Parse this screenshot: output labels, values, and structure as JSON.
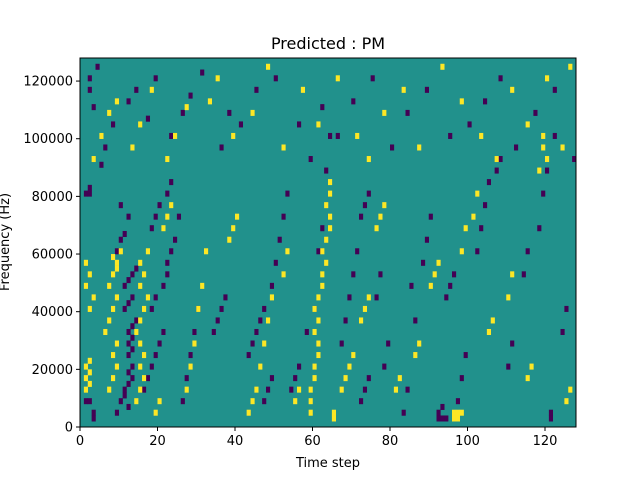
{
  "chart_data": {
    "type": "heatmap",
    "title": "Predicted : PM",
    "xlabel": "Time step",
    "ylabel": "Frequency (Hz)",
    "xlim": [
      0,
      128
    ],
    "ylim": [
      0,
      128000
    ],
    "x_ticks": [
      0,
      20,
      40,
      60,
      80,
      100,
      120
    ],
    "y_ticks": [
      0,
      20000,
      40000,
      60000,
      80000,
      100000,
      120000
    ],
    "x_tick_labels": [
      "0",
      "20",
      "40",
      "60",
      "80",
      "100",
      "120"
    ],
    "y_tick_labels": [
      "0",
      "20000",
      "40000",
      "60000",
      "80000",
      "100000",
      "120000"
    ],
    "n_time_steps": 128,
    "n_freq_bins": 64,
    "grid": false,
    "colormap": "viridis",
    "values_legend": {
      "0": "background",
      "1": "low (dark purple)",
      "2": "high (yellow)"
    },
    "colors": {
      "background": "#21918c",
      "low": "#440154",
      "high": "#fde725"
    },
    "low_cells": [
      [
        1,
        4
      ],
      [
        2,
        4
      ],
      [
        3,
        2
      ],
      [
        3,
        1
      ],
      [
        1,
        40
      ],
      [
        2,
        40
      ],
      [
        2,
        41
      ],
      [
        5,
        45
      ],
      [
        3,
        55
      ],
      [
        9,
        30
      ],
      [
        10,
        32
      ],
      [
        11,
        33
      ],
      [
        10,
        38
      ],
      [
        12,
        36
      ],
      [
        11,
        20
      ],
      [
        12,
        21
      ],
      [
        13,
        22
      ],
      [
        11,
        24
      ],
      [
        12,
        25
      ],
      [
        13,
        26
      ],
      [
        14,
        27
      ],
      [
        12,
        12
      ],
      [
        13,
        13
      ],
      [
        12,
        14
      ],
      [
        13,
        15
      ],
      [
        12,
        16
      ],
      [
        13,
        17
      ],
      [
        14,
        18
      ],
      [
        11,
        6
      ],
      [
        12,
        7
      ],
      [
        13,
        8
      ],
      [
        12,
        9
      ],
      [
        13,
        10
      ],
      [
        9,
        2
      ],
      [
        10,
        4
      ],
      [
        11,
        5
      ],
      [
        12,
        3
      ],
      [
        16,
        6
      ],
      [
        17,
        8
      ],
      [
        18,
        10
      ],
      [
        19,
        12
      ],
      [
        20,
        14
      ],
      [
        21,
        16
      ],
      [
        18,
        20
      ],
      [
        19,
        22
      ],
      [
        21,
        24
      ],
      [
        22,
        26
      ],
      [
        22,
        28
      ],
      [
        23,
        30
      ],
      [
        24,
        32
      ],
      [
        18,
        34
      ],
      [
        19,
        36
      ],
      [
        20,
        38
      ],
      [
        22,
        40
      ],
      [
        23,
        42
      ],
      [
        25,
        36
      ],
      [
        26,
        4
      ],
      [
        27,
        8
      ],
      [
        28,
        12
      ],
      [
        29,
        16
      ],
      [
        30,
        20
      ],
      [
        34,
        16
      ],
      [
        35,
        18
      ],
      [
        36,
        20
      ],
      [
        37,
        22
      ],
      [
        43,
        12
      ],
      [
        44,
        14
      ],
      [
        45,
        16
      ],
      [
        46,
        18
      ],
      [
        47,
        20
      ],
      [
        47,
        4
      ],
      [
        48,
        6
      ],
      [
        49,
        8
      ],
      [
        49,
        24
      ],
      [
        50,
        28
      ],
      [
        51,
        32
      ],
      [
        52,
        36
      ],
      [
        53,
        40
      ],
      [
        54,
        6
      ],
      [
        55,
        8
      ],
      [
        56,
        10
      ],
      [
        58,
        16
      ],
      [
        60,
        20
      ],
      [
        59,
        46
      ],
      [
        61,
        30
      ],
      [
        62,
        34
      ],
      [
        63,
        44
      ],
      [
        64,
        50
      ],
      [
        67,
        14
      ],
      [
        68,
        18
      ],
      [
        69,
        22
      ],
      [
        70,
        26
      ],
      [
        71,
        30
      ],
      [
        72,
        4
      ],
      [
        73,
        6
      ],
      [
        74,
        8
      ],
      [
        72,
        36
      ],
      [
        73,
        38
      ],
      [
        74,
        40
      ],
      [
        76,
        22
      ],
      [
        77,
        26
      ],
      [
        78,
        10
      ],
      [
        79,
        14
      ],
      [
        83,
        2
      ],
      [
        84,
        6
      ],
      [
        85,
        24
      ],
      [
        86,
        18
      ],
      [
        88,
        28
      ],
      [
        89,
        32
      ],
      [
        90,
        36
      ],
      [
        92,
        1
      ],
      [
        92,
        2
      ],
      [
        93,
        1
      ],
      [
        94,
        1
      ],
      [
        93,
        3
      ],
      [
        94,
        22
      ],
      [
        95,
        24
      ],
      [
        96,
        26
      ],
      [
        97,
        4
      ],
      [
        98,
        8
      ],
      [
        99,
        12
      ],
      [
        102,
        30
      ],
      [
        103,
        34
      ],
      [
        104,
        38
      ],
      [
        105,
        42
      ],
      [
        107,
        44
      ],
      [
        108,
        46
      ],
      [
        110,
        10
      ],
      [
        111,
        14
      ],
      [
        114,
        26
      ],
      [
        115,
        30
      ],
      [
        118,
        34
      ],
      [
        119,
        40
      ],
      [
        120,
        44
      ],
      [
        121,
        2
      ],
      [
        121,
        1
      ],
      [
        122,
        50
      ],
      [
        124,
        16
      ],
      [
        125,
        20
      ],
      [
        2,
        58
      ],
      [
        2,
        60
      ],
      [
        4,
        62
      ],
      [
        6,
        48
      ],
      [
        8,
        52
      ],
      [
        12,
        56
      ],
      [
        14,
        58
      ],
      [
        17,
        53
      ],
      [
        19,
        60
      ],
      [
        23,
        50
      ],
      [
        26,
        54
      ],
      [
        28,
        57
      ],
      [
        31,
        61
      ],
      [
        36,
        48
      ],
      [
        38,
        54
      ],
      [
        41,
        52
      ],
      [
        45,
        58
      ],
      [
        50,
        60
      ],
      [
        56,
        52
      ],
      [
        62,
        55
      ],
      [
        66,
        50
      ],
      [
        70,
        56
      ],
      [
        75,
        60
      ],
      [
        80,
        48
      ],
      [
        84,
        54
      ],
      [
        89,
        58
      ],
      [
        95,
        50
      ],
      [
        100,
        52
      ],
      [
        104,
        56
      ],
      [
        108,
        60
      ],
      [
        112,
        48
      ],
      [
        117,
        54
      ],
      [
        122,
        58
      ],
      [
        127,
        46
      ]
    ],
    "high_cells": [
      [
        1,
        6
      ],
      [
        2,
        7
      ],
      [
        1,
        8
      ],
      [
        2,
        9
      ],
      [
        1,
        10
      ],
      [
        2,
        11
      ],
      [
        1,
        24
      ],
      [
        2,
        26
      ],
      [
        1,
        28
      ],
      [
        2,
        20
      ],
      [
        3,
        22
      ],
      [
        6,
        16
      ],
      [
        7,
        18
      ],
      [
        8,
        20
      ],
      [
        9,
        22
      ],
      [
        7,
        24
      ],
      [
        8,
        26
      ],
      [
        9,
        28
      ],
      [
        10,
        30
      ],
      [
        8,
        29
      ],
      [
        9,
        27
      ],
      [
        7,
        6
      ],
      [
        8,
        8
      ],
      [
        9,
        10
      ],
      [
        8,
        12
      ],
      [
        9,
        14
      ],
      [
        14,
        4
      ],
      [
        15,
        6
      ],
      [
        16,
        8
      ],
      [
        15,
        10
      ],
      [
        16,
        12
      ],
      [
        15,
        14
      ],
      [
        14,
        16
      ],
      [
        15,
        18
      ],
      [
        16,
        20
      ],
      [
        17,
        22
      ],
      [
        15,
        24
      ],
      [
        16,
        26
      ],
      [
        15,
        28
      ],
      [
        17,
        30
      ],
      [
        19,
        2
      ],
      [
        20,
        4
      ],
      [
        21,
        34
      ],
      [
        22,
        36
      ],
      [
        23,
        38
      ],
      [
        27,
        6
      ],
      [
        28,
        10
      ],
      [
        29,
        14
      ],
      [
        30,
        20
      ],
      [
        31,
        24
      ],
      [
        32,
        30
      ],
      [
        38,
        32
      ],
      [
        39,
        34
      ],
      [
        40,
        36
      ],
      [
        43,
        2
      ],
      [
        44,
        4
      ],
      [
        45,
        6
      ],
      [
        46,
        10
      ],
      [
        47,
        14
      ],
      [
        48,
        18
      ],
      [
        49,
        22
      ],
      [
        52,
        26
      ],
      [
        53,
        30
      ],
      [
        55,
        4
      ],
      [
        56,
        6
      ],
      [
        59,
        2
      ],
      [
        59,
        4
      ],
      [
        59,
        6
      ],
      [
        60,
        8
      ],
      [
        60,
        10
      ],
      [
        61,
        12
      ],
      [
        61,
        14
      ],
      [
        60,
        16
      ],
      [
        61,
        18
      ],
      [
        60,
        20
      ],
      [
        61,
        22
      ],
      [
        62,
        24
      ],
      [
        62,
        26
      ],
      [
        63,
        28
      ],
      [
        62,
        30
      ],
      [
        63,
        32
      ],
      [
        64,
        34
      ],
      [
        64,
        36
      ],
      [
        63,
        38
      ],
      [
        64,
        40
      ],
      [
        64,
        42
      ],
      [
        65,
        1
      ],
      [
        65,
        2
      ],
      [
        67,
        6
      ],
      [
        68,
        8
      ],
      [
        69,
        10
      ],
      [
        70,
        12
      ],
      [
        72,
        18
      ],
      [
        73,
        20
      ],
      [
        74,
        22
      ],
      [
        76,
        34
      ],
      [
        77,
        36
      ],
      [
        78,
        38
      ],
      [
        81,
        6
      ],
      [
        82,
        8
      ],
      [
        86,
        12
      ],
      [
        87,
        14
      ],
      [
        90,
        24
      ],
      [
        91,
        26
      ],
      [
        92,
        28
      ],
      [
        96,
        1
      ],
      [
        96,
        2
      ],
      [
        97,
        2
      ],
      [
        98,
        2
      ],
      [
        97,
        1
      ],
      [
        98,
        30
      ],
      [
        99,
        34
      ],
      [
        101,
        36
      ],
      [
        102,
        40
      ],
      [
        105,
        16
      ],
      [
        106,
        18
      ],
      [
        110,
        22
      ],
      [
        111,
        26
      ],
      [
        115,
        8
      ],
      [
        116,
        10
      ],
      [
        118,
        44
      ],
      [
        119,
        48
      ],
      [
        119,
        50
      ],
      [
        120,
        46
      ],
      [
        125,
        4
      ],
      [
        126,
        6
      ],
      [
        3,
        46
      ],
      [
        5,
        50
      ],
      [
        7,
        54
      ],
      [
        9,
        56
      ],
      [
        13,
        48
      ],
      [
        15,
        52
      ],
      [
        18,
        58
      ],
      [
        22,
        46
      ],
      [
        24,
        50
      ],
      [
        27,
        55
      ],
      [
        33,
        56
      ],
      [
        35,
        60
      ],
      [
        39,
        50
      ],
      [
        44,
        54
      ],
      [
        48,
        62
      ],
      [
        52,
        48
      ],
      [
        57,
        58
      ],
      [
        61,
        52
      ],
      [
        66,
        60
      ],
      [
        71,
        50
      ],
      [
        74,
        46
      ],
      [
        78,
        54
      ],
      [
        83,
        58
      ],
      [
        87,
        48
      ],
      [
        93,
        62
      ],
      [
        98,
        56
      ],
      [
        103,
        50
      ],
      [
        107,
        46
      ],
      [
        111,
        58
      ],
      [
        115,
        52
      ],
      [
        120,
        60
      ],
      [
        124,
        48
      ],
      [
        126,
        62
      ]
    ]
  }
}
